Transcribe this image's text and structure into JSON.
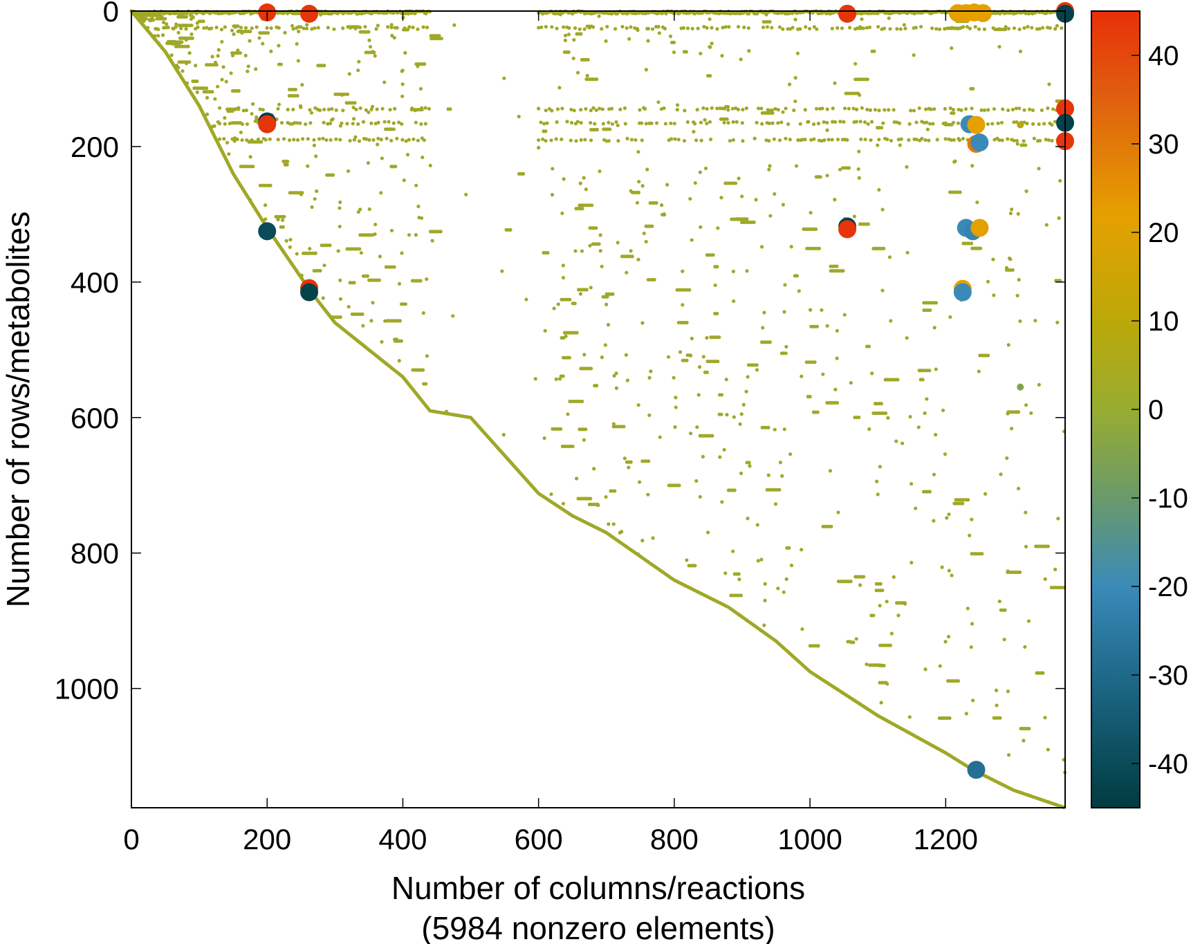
{
  "chart_data": {
    "type": "scatter",
    "title": "",
    "xlabel": "Number of columns/reactions",
    "xlabel_sub": "(5984 nonzero elements)",
    "ylabel": "Number of rows/metabolites",
    "xlim": [
      0,
      1376
    ],
    "ylim": [
      1176,
      0
    ],
    "y_reversed": true,
    "grid": false,
    "legend": "none",
    "xticks": [
      "0",
      "200",
      "400",
      "600",
      "800",
      "1000",
      "1200"
    ],
    "xtick_values": [
      0,
      200,
      400,
      600,
      800,
      1000,
      1200
    ],
    "yticks": [
      "0",
      "200",
      "400",
      "600",
      "800",
      "1000"
    ],
    "ytick_values": [
      0,
      200,
      400,
      600,
      800,
      1000
    ],
    "colorbar": {
      "range": [
        -45,
        45
      ],
      "ticks": [
        "40",
        "30",
        "20",
        "10",
        "0",
        "-10",
        "-20",
        "-30",
        "-40"
      ],
      "tick_values": [
        40,
        30,
        20,
        10,
        0,
        -10,
        -20,
        -30,
        -40
      ],
      "colormap": [
        {
          "value": 45,
          "color": "#e8300a"
        },
        {
          "value": 35,
          "color": "#e0600e"
        },
        {
          "value": 22,
          "color": "#e5a000"
        },
        {
          "value": 10,
          "color": "#bca808"
        },
        {
          "value": 0,
          "color": "#98ac30"
        },
        {
          "value": -10,
          "color": "#6a9a6a"
        },
        {
          "value": -20,
          "color": "#3a8ab8"
        },
        {
          "value": -30,
          "color": "#1f6a8a"
        },
        {
          "value": -45,
          "color": "#003c40"
        }
      ]
    },
    "small_value_color": "#a0a828",
    "diagonal": [
      [
        0,
        0
      ],
      [
        50,
        60
      ],
      [
        100,
        140
      ],
      [
        150,
        240
      ],
      [
        200,
        320
      ],
      [
        265,
        415
      ],
      [
        300,
        460
      ],
      [
        350,
        500
      ],
      [
        400,
        540
      ],
      [
        440,
        590
      ],
      [
        500,
        600
      ],
      [
        600,
        712
      ],
      [
        650,
        745
      ],
      [
        700,
        770
      ],
      [
        800,
        840
      ],
      [
        880,
        880
      ],
      [
        950,
        930
      ],
      [
        1000,
        975
      ],
      [
        1100,
        1040
      ],
      [
        1200,
        1095
      ],
      [
        1240,
        1120
      ],
      [
        1300,
        1150
      ],
      [
        1376,
        1176
      ]
    ],
    "bands": [
      {
        "row": 2,
        "cols": [
          [
            0,
            440
          ],
          [
            600,
            1376
          ]
        ]
      },
      {
        "row": 25,
        "cols": [
          [
            30,
            440
          ],
          [
            600,
            1376
          ]
        ]
      },
      {
        "row": 145,
        "cols": [
          [
            130,
            440
          ],
          [
            600,
            1376
          ]
        ]
      },
      {
        "row": 165,
        "cols": [
          [
            130,
            440
          ],
          [
            600,
            1376
          ]
        ]
      },
      {
        "row": 190,
        "cols": [
          [
            130,
            440
          ],
          [
            600,
            1376
          ]
        ]
      }
    ],
    "large_values": [
      {
        "col": 200,
        "row": 2,
        "value": 44
      },
      {
        "col": 262,
        "row": 4,
        "value": 44
      },
      {
        "col": 1055,
        "row": 4,
        "value": 44
      },
      {
        "col": 1218,
        "row": 3,
        "value": 22
      },
      {
        "col": 1230,
        "row": 3,
        "value": 22
      },
      {
        "col": 1242,
        "row": 2,
        "value": 22
      },
      {
        "col": 1255,
        "row": 3,
        "value": 22
      },
      {
        "col": 1376,
        "row": 0,
        "value": 44
      },
      {
        "col": 1376,
        "row": 4,
        "value": -43
      },
      {
        "col": 200,
        "row": 163,
        "value": -43
      },
      {
        "col": 200,
        "row": 167,
        "value": 44
      },
      {
        "col": 1376,
        "row": 144,
        "value": 44
      },
      {
        "col": 1376,
        "row": 165,
        "value": -43
      },
      {
        "col": 1376,
        "row": 192,
        "value": 44
      },
      {
        "col": 1235,
        "row": 167,
        "value": -20
      },
      {
        "col": 1245,
        "row": 168,
        "value": 22
      },
      {
        "col": 1245,
        "row": 196,
        "value": 30
      },
      {
        "col": 1250,
        "row": 194,
        "value": -20
      },
      {
        "col": 200,
        "row": 325,
        "value": -40
      },
      {
        "col": 262,
        "row": 409,
        "value": 44
      },
      {
        "col": 262,
        "row": 415,
        "value": -43
      },
      {
        "col": 1055,
        "row": 318,
        "value": -43
      },
      {
        "col": 1055,
        "row": 322,
        "value": 44
      },
      {
        "col": 1230,
        "row": 320,
        "value": -20
      },
      {
        "col": 1240,
        "row": 325,
        "value": -22
      },
      {
        "col": 1250,
        "row": 320,
        "value": 22
      },
      {
        "col": 1225,
        "row": 410,
        "value": 22
      },
      {
        "col": 1225,
        "row": 415,
        "value": -20
      },
      {
        "col": 1245,
        "row": 1120,
        "value": -28
      }
    ]
  }
}
